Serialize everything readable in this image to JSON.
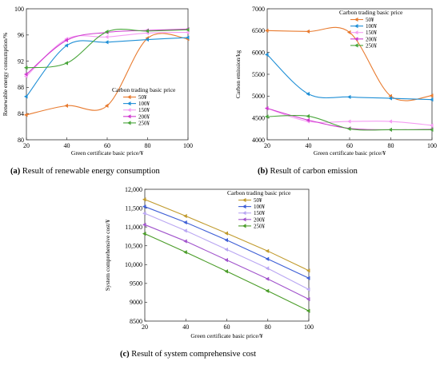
{
  "colors": {
    "50": "#e87a2e",
    "100": "#1f8fd6",
    "150": "#f59cf3",
    "200": "#d03ad0",
    "250": "#48a53a",
    "c_50": "#c09a2c",
    "c_100": "#3e5fd6",
    "c_150": "#b9a6f2",
    "c_200": "#a154cc",
    "c_250": "#4a9c28"
  },
  "captions": [
    {
      "label": "(a)",
      "text": " Result of renewable energy consumption"
    },
    {
      "label": "(b)",
      "text": " Result of carbon emission"
    },
    {
      "label": "(c)",
      "text": " Result of system comprehensive cost"
    }
  ],
  "chart_data": [
    {
      "type": "line",
      "xlabel": "Green certificate basic price/¥",
      "ylabel": "Renewable energy consumption/%",
      "x": [
        20,
        40,
        60,
        80,
        100
      ],
      "xlim": [
        20,
        100
      ],
      "ylim": [
        80,
        100
      ],
      "yticks": [
        80,
        84,
        88,
        92,
        96,
        100
      ],
      "legend_title": "Carbon trading basic price",
      "legend_position": "bottom-right",
      "series": [
        {
          "name": "50¥",
          "color_key": "50",
          "values": [
            83.8,
            85.2,
            85.2,
            95.5,
            95.4
          ]
        },
        {
          "name": "100¥",
          "color_key": "100",
          "values": [
            86.6,
            94.4,
            94.9,
            95.3,
            95.6
          ]
        },
        {
          "name": "150¥",
          "color_key": "150",
          "values": [
            89.7,
            95.4,
            95.7,
            96.3,
            96.4
          ]
        },
        {
          "name": "200¥",
          "color_key": "200",
          "values": [
            90.0,
            95.2,
            96.4,
            96.7,
            96.9
          ]
        },
        {
          "name": "250¥",
          "color_key": "250",
          "values": [
            91.0,
            91.7,
            96.5,
            96.6,
            96.8
          ]
        }
      ]
    },
    {
      "type": "line",
      "xlabel": "Green certificate basic price/¥",
      "ylabel": "Carbon emission/kg",
      "x": [
        20,
        40,
        60,
        80,
        100
      ],
      "xlim": [
        20,
        100
      ],
      "ylim": [
        4000,
        7000
      ],
      "yticks": [
        4000,
        4500,
        5000,
        5500,
        6000,
        6500,
        7000
      ],
      "legend_title": "Carbon trading basic price",
      "legend_position": "top-right",
      "series": [
        {
          "name": "50¥",
          "color_key": "50",
          "values": [
            6500,
            6480,
            6460,
            5000,
            5010
          ]
        },
        {
          "name": "100¥",
          "color_key": "100",
          "values": [
            5950,
            5050,
            4980,
            4950,
            4920
          ]
        },
        {
          "name": "150¥",
          "color_key": "150",
          "values": [
            4720,
            4420,
            4420,
            4420,
            4330
          ]
        },
        {
          "name": "200¥",
          "color_key": "200",
          "values": [
            4720,
            4450,
            4260,
            4230,
            4240
          ]
        },
        {
          "name": "250¥",
          "color_key": "250",
          "values": [
            4530,
            4540,
            4250,
            4230,
            4230
          ]
        }
      ]
    },
    {
      "type": "line",
      "xlabel": "Green certificate basic price/¥",
      "ylabel": "System comprehensive cost/¥",
      "x": [
        20,
        40,
        60,
        80,
        100
      ],
      "xlim": [
        20,
        100
      ],
      "ylim": [
        8500,
        12000
      ],
      "yticks": [
        8500,
        9000,
        9500,
        10000,
        10500,
        11000,
        11500,
        12000
      ],
      "ytick_labels": [
        "8500",
        "9000",
        "9500",
        "10,000",
        "10,500",
        "11,000",
        "11,500",
        "12,000"
      ],
      "legend_title": "Carbon trading basic price",
      "legend_position": "top-right",
      "series": [
        {
          "name": "50¥",
          "color_key": "c_50",
          "values": [
            11730,
            11290,
            10830,
            10360,
            9840
          ]
        },
        {
          "name": "100¥",
          "color_key": "c_100",
          "values": [
            11540,
            11120,
            10650,
            10150,
            9640
          ]
        },
        {
          "name": "150¥",
          "color_key": "c_150",
          "values": [
            11360,
            10900,
            10400,
            9900,
            9340
          ]
        },
        {
          "name": "200¥",
          "color_key": "c_200",
          "values": [
            11060,
            10620,
            10120,
            9620,
            9080
          ]
        },
        {
          "name": "250¥",
          "color_key": "c_250",
          "values": [
            10820,
            10330,
            9820,
            9300,
            8770
          ]
        }
      ]
    }
  ]
}
